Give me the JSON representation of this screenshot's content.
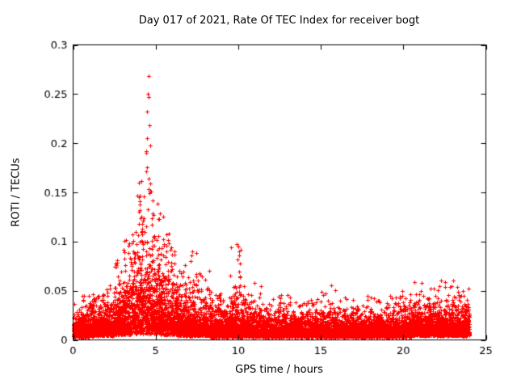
{
  "chart_data": {
    "type": "scatter",
    "title": "Day 017 of 2021, Rate Of TEC Index for receiver bogt",
    "xlabel": "GPS time / hours",
    "ylabel": "ROTI / TECUs",
    "xlim": [
      0,
      25
    ],
    "ylim": [
      0,
      0.3
    ],
    "xticks": [
      {
        "v": 0,
        "label": "0"
      },
      {
        "v": 5,
        "label": "5"
      },
      {
        "v": 10,
        "label": "10"
      },
      {
        "v": 15,
        "label": "15"
      },
      {
        "v": 20,
        "label": "20"
      },
      {
        "v": 25,
        "label": "25"
      }
    ],
    "yticks": [
      {
        "v": 0,
        "label": "0"
      },
      {
        "v": 0.05,
        "label": "0.05"
      },
      {
        "v": 0.1,
        "label": "0.1"
      },
      {
        "v": 0.15,
        "label": "0.15"
      },
      {
        "v": 0.2,
        "label": "0.2"
      },
      {
        "v": 0.25,
        "label": "0.25"
      },
      {
        "v": 0.3,
        "label": "0.3"
      }
    ],
    "grid": false,
    "legend": "none",
    "marker": "plus",
    "marker_size": 5,
    "color": "#ff0000",
    "axis_color": "#000000",
    "background": "#ffffff",
    "segments_format": [
      "t_start_hours",
      "t_end_hours",
      "n_points",
      "y_min",
      "exp_scale",
      "y_max"
    ],
    "segments": [
      [
        0.0,
        1.0,
        380,
        0.003,
        0.01,
        0.048
      ],
      [
        1.0,
        2.0,
        380,
        0.004,
        0.011,
        0.052
      ],
      [
        2.0,
        2.5,
        190,
        0.004,
        0.012,
        0.058
      ],
      [
        2.5,
        3.0,
        200,
        0.005,
        0.018,
        0.082
      ],
      [
        3.0,
        3.5,
        200,
        0.005,
        0.022,
        0.105
      ],
      [
        3.5,
        3.9,
        170,
        0.006,
        0.03,
        0.155
      ],
      [
        3.9,
        4.3,
        180,
        0.006,
        0.042,
        0.19
      ],
      [
        4.3,
        4.8,
        210,
        0.006,
        0.04,
        0.185
      ],
      [
        4.8,
        5.3,
        210,
        0.006,
        0.032,
        0.145
      ],
      [
        5.3,
        5.8,
        200,
        0.005,
        0.028,
        0.132
      ],
      [
        5.8,
        6.3,
        200,
        0.005,
        0.022,
        0.102
      ],
      [
        6.3,
        7.0,
        270,
        0.004,
        0.016,
        0.085
      ],
      [
        7.0,
        7.6,
        230,
        0.004,
        0.016,
        0.09
      ],
      [
        7.6,
        8.3,
        260,
        0.004,
        0.013,
        0.075
      ],
      [
        8.3,
        9.5,
        450,
        0.003,
        0.011,
        0.06
      ],
      [
        9.5,
        10.4,
        340,
        0.003,
        0.014,
        0.1
      ],
      [
        10.4,
        11.5,
        410,
        0.003,
        0.01,
        0.06
      ],
      [
        11.5,
        15.0,
        1300,
        0.003,
        0.008,
        0.046
      ],
      [
        15.0,
        16.0,
        380,
        0.003,
        0.009,
        0.056
      ],
      [
        16.0,
        19.0,
        1100,
        0.003,
        0.008,
        0.046
      ],
      [
        19.0,
        20.5,
        560,
        0.003,
        0.009,
        0.05
      ],
      [
        20.5,
        23.5,
        1150,
        0.004,
        0.011,
        0.062
      ],
      [
        23.5,
        24.0,
        200,
        0.004,
        0.01,
        0.056
      ]
    ],
    "outliers": [
      [
        4.55,
        0.268
      ],
      [
        4.52,
        0.25
      ],
      [
        4.58,
        0.247
      ],
      [
        4.5,
        0.232
      ],
      [
        4.62,
        0.218
      ],
      [
        4.48,
        0.205
      ],
      [
        4.65,
        0.198
      ],
      [
        4.45,
        0.192
      ],
      [
        4.42,
        0.19
      ],
      [
        10.0,
        0.095
      ],
      [
        10.03,
        0.09
      ],
      [
        10.06,
        0.086
      ],
      [
        9.97,
        0.082
      ],
      [
        10.1,
        0.078
      ],
      [
        7.45,
        0.088
      ],
      [
        3.05,
        0.092
      ]
    ]
  }
}
